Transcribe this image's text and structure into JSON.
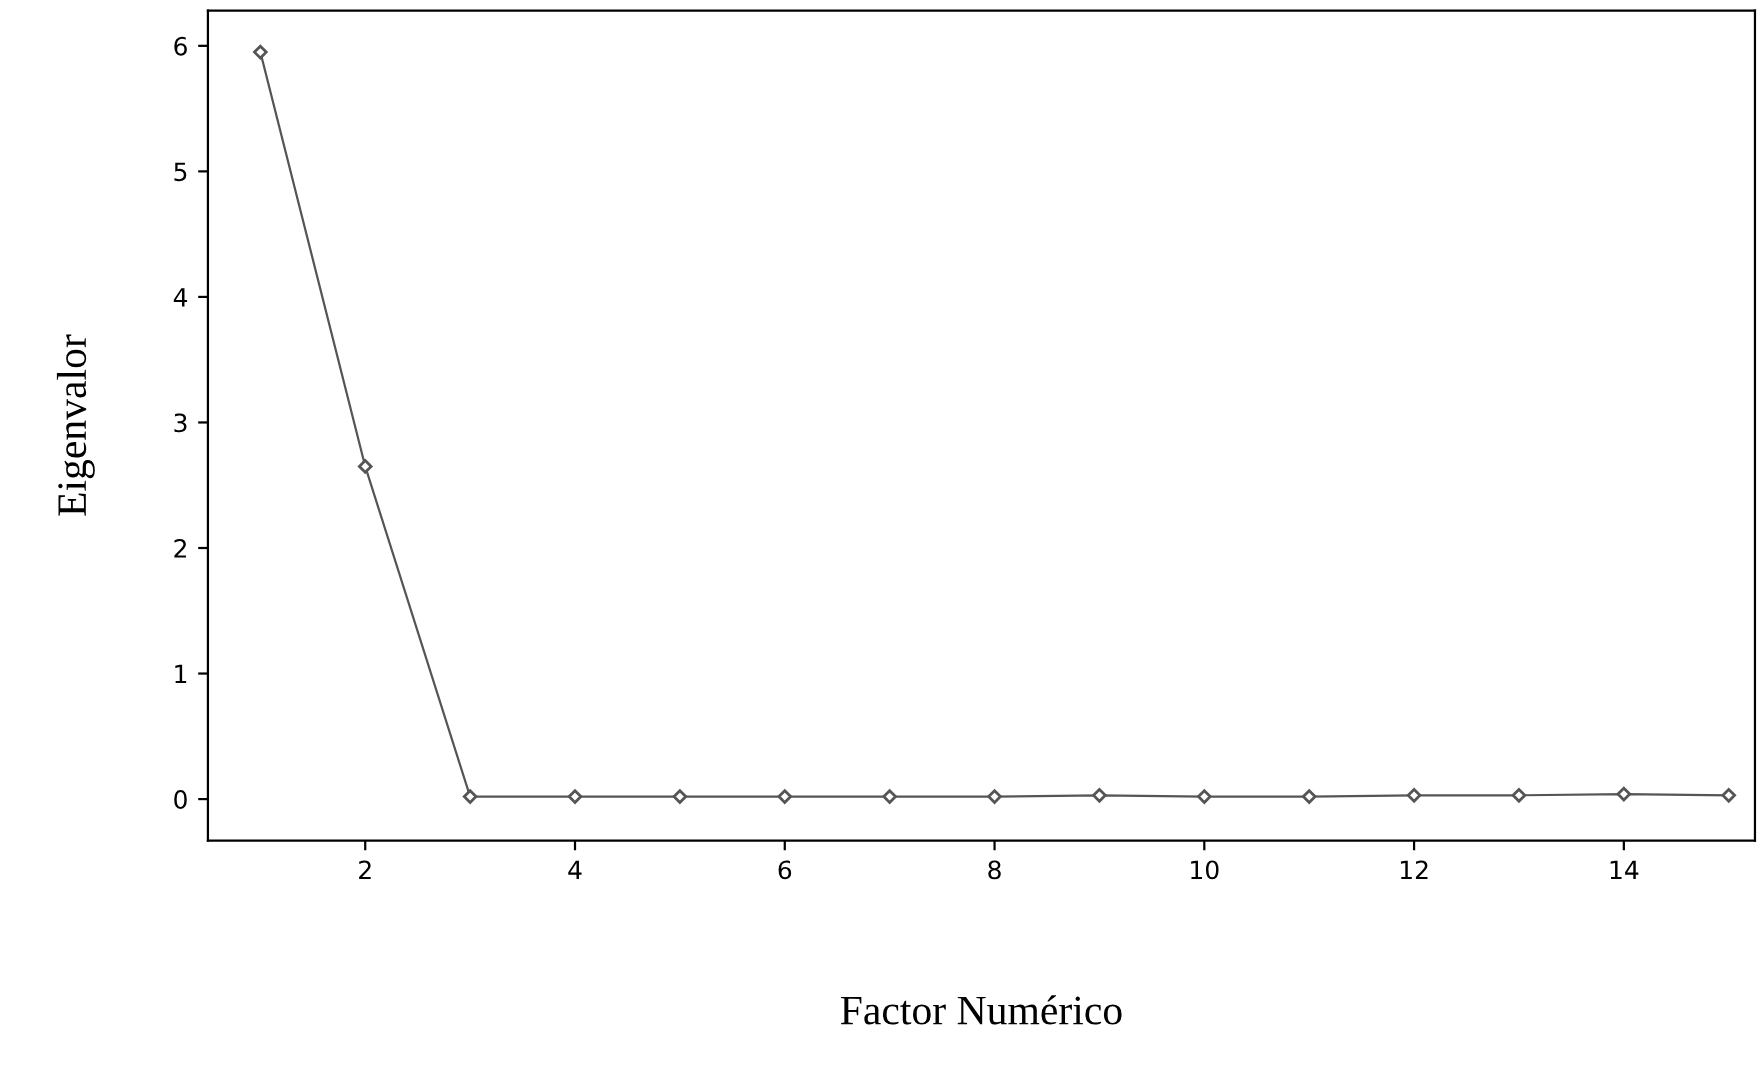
{
  "chart_data": {
    "type": "line",
    "xlabel": "Factor Numérico",
    "ylabel": "Eigenvalor",
    "x": [
      1,
      2,
      3,
      4,
      5,
      6,
      7,
      8,
      9,
      10,
      11,
      12,
      13,
      14,
      15
    ],
    "series": [
      {
        "color": "#555555",
        "values": [
          5.95,
          2.65,
          0.02,
          0.02,
          0.02,
          0.02,
          0.02,
          0.02,
          0.03,
          0.02,
          0.02,
          0.03,
          0.03,
          0.04,
          0.03
        ]
      }
    ],
    "xlim": [
      0.5,
      15.25
    ],
    "ylim": [
      -0.33,
      6.28
    ],
    "xticks": [
      2,
      4,
      6,
      8,
      10,
      12,
      14
    ],
    "yticks": [
      0,
      1,
      2,
      3,
      4,
      5,
      6
    ],
    "grid": false,
    "legend": false,
    "marker": "diamond",
    "line_style": "solid"
  }
}
